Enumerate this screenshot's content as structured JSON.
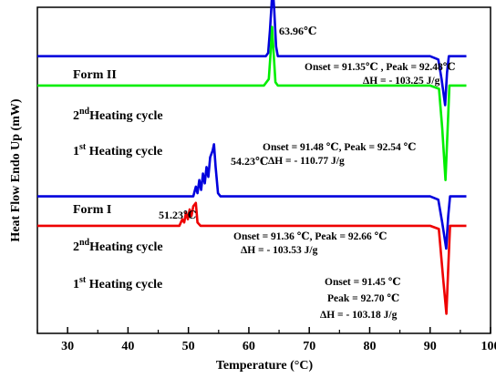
{
  "chart_data": {
    "type": "line",
    "xlabel": "Temperature (°C)",
    "ylabel": "Heat Flow Endo Up (mW)",
    "xlim": [
      25,
      100
    ],
    "xticks": [
      "30",
      "40",
      "50",
      "60",
      "70",
      "80",
      "90",
      "100"
    ],
    "series": [
      {
        "color": "#0000dd",
        "points": [
          [
            25,
            0.85
          ],
          [
            60,
            0.85
          ],
          [
            62,
            0.85
          ],
          [
            62.8,
            0.85
          ],
          [
            63.2,
            0.86
          ],
          [
            63.5,
            0.93
          ],
          [
            63.8,
            1.02
          ],
          [
            63.96,
            1.06
          ],
          [
            64.2,
            0.99
          ],
          [
            64.5,
            0.88
          ],
          [
            64.8,
            0.85
          ],
          [
            88,
            0.85
          ],
          [
            90,
            0.85
          ],
          [
            91.35,
            0.84
          ],
          [
            91.9,
            0.78
          ],
          [
            92.48,
            0.7
          ],
          [
            92.8,
            0.8
          ],
          [
            93.1,
            0.85
          ],
          [
            96,
            0.85
          ]
        ]
      },
      {
        "color": "#00ee00",
        "points": [
          [
            25,
            0.76
          ],
          [
            62.5,
            0.76
          ],
          [
            63.3,
            0.78
          ],
          [
            63.6,
            0.86
          ],
          [
            63.85,
            0.94
          ],
          [
            64.1,
            0.86
          ],
          [
            64.4,
            0.77
          ],
          [
            64.8,
            0.76
          ],
          [
            90,
            0.76
          ],
          [
            91.48,
            0.75
          ],
          [
            92.0,
            0.63
          ],
          [
            92.54,
            0.47
          ],
          [
            92.9,
            0.63
          ],
          [
            93.2,
            0.76
          ],
          [
            96,
            0.76
          ]
        ]
      },
      {
        "color": "#0000dd",
        "points": [
          [
            25,
            0.42
          ],
          [
            50,
            0.42
          ],
          [
            50.8,
            0.42
          ],
          [
            51.23,
            0.45
          ],
          [
            51.5,
            0.43
          ],
          [
            51.8,
            0.47
          ],
          [
            52.1,
            0.44
          ],
          [
            52.4,
            0.49
          ],
          [
            52.7,
            0.46
          ],
          [
            53.0,
            0.51
          ],
          [
            53.3,
            0.48
          ],
          [
            53.6,
            0.54
          ],
          [
            54.0,
            0.56
          ],
          [
            54.23,
            0.58
          ],
          [
            54.5,
            0.51
          ],
          [
            54.9,
            0.43
          ],
          [
            55.3,
            0.42
          ],
          [
            90,
            0.42
          ],
          [
            91.36,
            0.41
          ],
          [
            92.0,
            0.34
          ],
          [
            92.66,
            0.26
          ],
          [
            93.0,
            0.36
          ],
          [
            93.3,
            0.42
          ],
          [
            96,
            0.42
          ]
        ]
      },
      {
        "color": "#ee0000",
        "points": [
          [
            25,
            0.33
          ],
          [
            48.5,
            0.33
          ],
          [
            49.0,
            0.35
          ],
          [
            49.3,
            0.34
          ],
          [
            49.6,
            0.37
          ],
          [
            49.9,
            0.35
          ],
          [
            50.2,
            0.38
          ],
          [
            50.5,
            0.36
          ],
          [
            50.8,
            0.39
          ],
          [
            51.23,
            0.4
          ],
          [
            51.5,
            0.34
          ],
          [
            52.0,
            0.33
          ],
          [
            90,
            0.33
          ],
          [
            91.45,
            0.32
          ],
          [
            92.2,
            0.16
          ],
          [
            92.7,
            0.06
          ],
          [
            93.0,
            0.2
          ],
          [
            93.3,
            0.33
          ],
          [
            96,
            0.33
          ]
        ]
      }
    ]
  },
  "labels": {
    "form2": "Form II",
    "form1": "Form I",
    "heat2_f2_pre": "2",
    "heat2_f2_sup": "nd",
    "heat2_f2_post": "Heating cycle",
    "heat1_f2_pre": "1",
    "heat1_f2_sup": "st",
    "heat1_f2_post": " Heating cycle",
    "heat2_f1_pre": "2",
    "heat2_f1_sup": "nd",
    "heat2_f1_post": "Heating cycle",
    "heat1_f1_pre": "1",
    "heat1_f1_sup": "st",
    "heat1_f1_post": " Heating cycle"
  },
  "annotations": {
    "peak_f2": "63.96℃",
    "peak_f1_top": "54.23℃",
    "peak_f1_left": "51.23℃",
    "f2_h2_line1": "Onset = 91.35℃  ,  Peak = 92.48℃",
    "f2_h2_line2": "ΔH = - 103.25 J/g",
    "f2_h1_line1": "Onset = 91.48 ℃,  Peak = 92.54 ℃",
    "f2_h1_line2": "ΔH = - 110.77 J/g",
    "f1_h2_line1": "Onset = 91.36 ℃,  Peak = 92.66 ℃",
    "f1_h2_line2": "ΔH = - 103.53 J/g",
    "f1_h1_line1": "Onset = 91.45  ℃",
    "f1_h1_line2": "Peak = 92.70 ℃",
    "f1_h1_line3": "ΔH = - 103.18 J/g"
  }
}
